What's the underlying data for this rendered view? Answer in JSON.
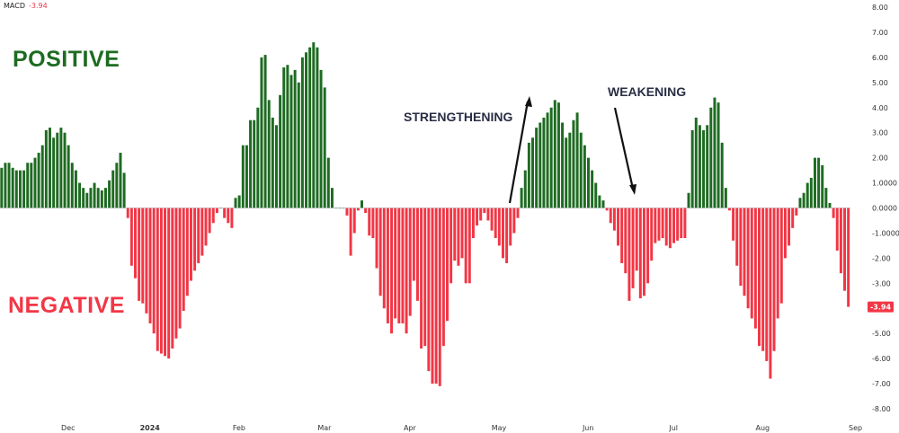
{
  "header": {
    "indicator": "MACD",
    "value": "-3.94"
  },
  "annotations": {
    "positive": "POSITIVE",
    "negative": "NEGATIVE",
    "strengthening": "STRENGTHENING",
    "weakening": "WEAKENING"
  },
  "colors": {
    "positive": "#1e6b22",
    "negative": "#f23645",
    "last_value_bg": "#f23645",
    "text_dark": "#2a2e45"
  },
  "chart_data": {
    "type": "bar",
    "title": "",
    "xlabel": "",
    "ylabel": "",
    "ylim": [
      -8,
      8
    ],
    "y_ticks": [
      "8.00",
      "7.00",
      "6.00",
      "5.00",
      "4.00",
      "3.00",
      "2.00",
      "1.0000",
      "0.0000",
      "-1.0000",
      "-2.00",
      "-3.00",
      "-4.00",
      "-5.00",
      "-6.00",
      "-7.00",
      "-8.00"
    ],
    "y_tick_values": [
      8,
      7,
      6,
      5,
      4,
      3,
      2,
      1,
      0,
      -1,
      -2,
      -3,
      -4,
      -5,
      -6,
      -7,
      -8
    ],
    "x_labels": [
      {
        "label": "Dec",
        "index": 18,
        "bold": false
      },
      {
        "label": "2024",
        "index": 40,
        "bold": true
      },
      {
        "label": "Feb",
        "index": 64,
        "bold": false
      },
      {
        "label": "Mar",
        "index": 87,
        "bold": false
      },
      {
        "label": "Apr",
        "index": 110,
        "bold": false
      },
      {
        "label": "May",
        "index": 134,
        "bold": false
      },
      {
        "label": "Jun",
        "index": 158,
        "bold": false
      },
      {
        "label": "Jul",
        "index": 181,
        "bold": false
      },
      {
        "label": "Aug",
        "index": 205,
        "bold": false
      },
      {
        "label": "Sep",
        "index": 230,
        "bold": false
      }
    ],
    "last_value_label": "-3.94",
    "series": [
      {
        "values": [
          1.6,
          1.8,
          1.8,
          1.6,
          1.5,
          1.5,
          1.5,
          1.8,
          1.8,
          2.0,
          2.2,
          2.5,
          3.1,
          3.2,
          2.8,
          3.0,
          3.2,
          3.0,
          2.5,
          1.8,
          1.5,
          1.0,
          0.8,
          0.6,
          0.8,
          1.0,
          0.8,
          0.7,
          0.8,
          1.1,
          1.5,
          1.8,
          2.2,
          1.4,
          -0.4,
          -2.3,
          -2.8,
          -3.7,
          -3.8,
          -4.2,
          -4.6,
          -5.0,
          -5.7,
          -5.8,
          -5.9,
          -6.0,
          -5.6,
          -5.2,
          -4.8,
          -4.1,
          -3.5,
          -2.9,
          -2.5,
          -2.2,
          -1.9,
          -1.5,
          -1.0,
          -0.6,
          -0.2,
          0.0,
          -0.4,
          -0.6,
          -0.8,
          0.4,
          0.5,
          2.5,
          2.5,
          3.5,
          3.5,
          4.0,
          6.0,
          6.1,
          4.3,
          3.6,
          3.3,
          4.5,
          5.6,
          5.7,
          5.3,
          5.5,
          5.0,
          6.0,
          6.2,
          6.4,
          6.6,
          6.4,
          5.5,
          4.8,
          2.0,
          0.8,
          0.0,
          0.0,
          0.0,
          -0.3,
          -1.9,
          -1.0,
          -0.1,
          0.3,
          -0.2,
          -1.1,
          -1.2,
          -2.4,
          -3.5,
          -4.0,
          -4.6,
          -5.0,
          -4.4,
          -4.6,
          -4.6,
          -5.0,
          -4.3,
          -2.9,
          -3.7,
          -5.6,
          -5.5,
          -6.5,
          -7.0,
          -7.0,
          -7.1,
          -5.5,
          -4.5,
          -3.0,
          -2.1,
          -2.3,
          -2.0,
          -3.0,
          -3.0,
          -1.2,
          -0.7,
          -0.5,
          -0.2,
          -0.5,
          -0.9,
          -1.2,
          -1.5,
          -2.0,
          -2.2,
          -1.5,
          -1.0,
          -0.4,
          0.8,
          1.5,
          2.6,
          2.8,
          3.2,
          3.4,
          3.6,
          3.8,
          4.0,
          4.3,
          4.2,
          3.4,
          2.8,
          3.0,
          3.5,
          3.8,
          3.0,
          2.5,
          2.0,
          1.5,
          1.0,
          0.5,
          0.3,
          -0.1,
          -0.6,
          -0.9,
          -1.5,
          -2.2,
          -2.6,
          -3.7,
          -3.2,
          -2.5,
          -3.6,
          -3.5,
          -3.0,
          -2.1,
          -1.4,
          -1.3,
          -1.2,
          -1.5,
          -1.6,
          -1.4,
          -1.3,
          -1.2,
          -1.2,
          0.6,
          3.1,
          3.6,
          3.3,
          3.1,
          3.3,
          4.0,
          4.4,
          4.2,
          2.6,
          0.8,
          -0.1,
          -1.3,
          -2.3,
          -3.1,
          -3.5,
          -4.0,
          -4.4,
          -4.8,
          -5.5,
          -5.7,
          -6.1,
          -6.8,
          -5.7,
          -4.4,
          -3.8,
          -2.0,
          -1.5,
          -0.8,
          -0.3,
          0.4,
          0.6,
          1.0,
          1.2,
          2.0,
          2.0,
          1.7,
          0.8,
          0.2,
          -0.4,
          -1.7,
          -2.6,
          -3.3,
          -3.94
        ]
      }
    ]
  }
}
